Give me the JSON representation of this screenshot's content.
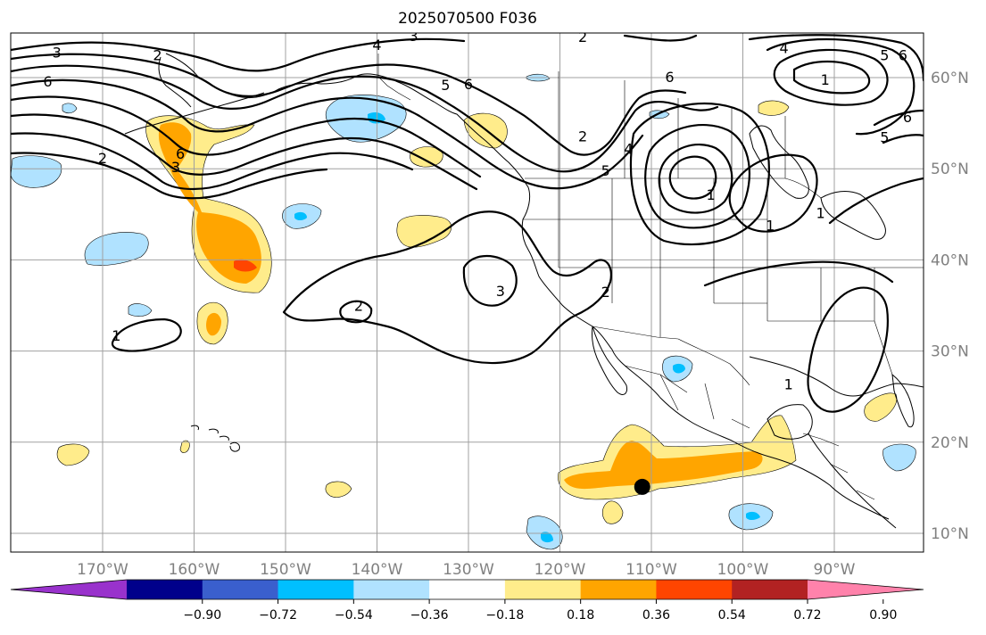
{
  "figure": {
    "title": "2025070500 F036"
  },
  "map": {
    "lon_range": [
      -180,
      -80
    ],
    "lat_range": [
      8,
      65
    ],
    "lon_ticks": [
      {
        "lon": -170,
        "label": "170°W"
      },
      {
        "lon": -160,
        "label": "160°W"
      },
      {
        "lon": -150,
        "label": "150°W"
      },
      {
        "lon": -140,
        "label": "140°W"
      },
      {
        "lon": -130,
        "label": "130°W"
      },
      {
        "lon": -120,
        "label": "120°W"
      },
      {
        "lon": -110,
        "label": "110°W"
      },
      {
        "lon": -100,
        "label": "100°W"
      },
      {
        "lon": -90,
        "label": "90°W"
      }
    ],
    "lat_ticks": [
      {
        "lat": 60,
        "label": "60°N"
      },
      {
        "lat": 50,
        "label": "50°N"
      },
      {
        "lat": 40,
        "label": "40°N"
      },
      {
        "lat": 30,
        "label": "30°N"
      },
      {
        "lat": 20,
        "label": "20°N"
      },
      {
        "lat": 10,
        "label": "10°N"
      }
    ],
    "gridlines": true,
    "marker": {
      "lon": -111,
      "lat": 15.1,
      "color": "#000000"
    }
  },
  "colorbar": {
    "extend": "both",
    "levels": [
      "−0.90",
      "−0.72",
      "−0.54",
      "−0.36",
      "−0.18",
      "0.18",
      "0.36",
      "0.54",
      "0.72",
      "0.90"
    ],
    "colors": [
      "#9932cc",
      "#00008b",
      "#3a5fcd",
      "#00bfff",
      "#b0e2ff",
      "#ffffff",
      "#ffec8b",
      "#ffa500",
      "#ff4500",
      "#b22222",
      "#ff82ab"
    ]
  },
  "contour_labels": [
    {
      "text": "3",
      "lon": -175,
      "lat": 62.8
    },
    {
      "text": "2",
      "lon": -164,
      "lat": 62.5
    },
    {
      "text": "6",
      "lon": -176,
      "lat": 59.6
    },
    {
      "text": "4",
      "lon": -140,
      "lat": 63.6
    },
    {
      "text": "3",
      "lon": -136,
      "lat": 64.6
    },
    {
      "text": "2",
      "lon": -117.5,
      "lat": 64.5
    },
    {
      "text": "5",
      "lon": -132.5,
      "lat": 59.2
    },
    {
      "text": "6",
      "lon": -130,
      "lat": 59.3
    },
    {
      "text": "6",
      "lon": -108,
      "lat": 60.1
    },
    {
      "text": "4",
      "lon": -95.5,
      "lat": 63.3
    },
    {
      "text": "5",
      "lon": -84.5,
      "lat": 62.5
    },
    {
      "text": "6",
      "lon": -82.5,
      "lat": 62.5
    },
    {
      "text": "1",
      "lon": -91,
      "lat": 59.8
    },
    {
      "text": "6",
      "lon": -82,
      "lat": 55.7
    },
    {
      "text": "5",
      "lon": -84.5,
      "lat": 53.5
    },
    {
      "text": "2",
      "lon": -117.5,
      "lat": 53.6
    },
    {
      "text": "4",
      "lon": -112.5,
      "lat": 52.2
    },
    {
      "text": "5",
      "lon": -115,
      "lat": 49.8
    },
    {
      "text": "1",
      "lon": -103.5,
      "lat": 47.2
    },
    {
      "text": "1",
      "lon": -97,
      "lat": 43.8
    },
    {
      "text": "1",
      "lon": -91.5,
      "lat": 45.2
    },
    {
      "text": "2",
      "lon": -170,
      "lat": 51.2
    },
    {
      "text": "6",
      "lon": -161.5,
      "lat": 51.7
    },
    {
      "text": "3",
      "lon": -162,
      "lat": 50.2
    },
    {
      "text": "2",
      "lon": -142,
      "lat": 35
    },
    {
      "text": "3",
      "lon": -126.5,
      "lat": 36.6
    },
    {
      "text": "2",
      "lon": -115,
      "lat": 36.5
    },
    {
      "text": "1",
      "lon": -168.5,
      "lat": 31.7
    },
    {
      "text": "1",
      "lon": -95,
      "lat": 26.4
    }
  ]
}
